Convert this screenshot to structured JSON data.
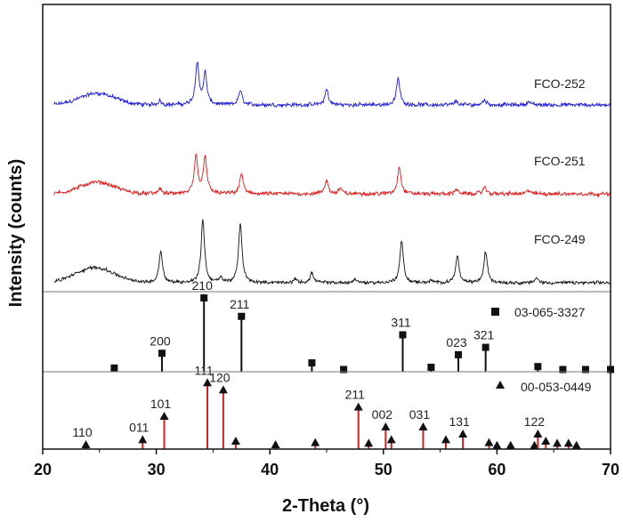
{
  "chart_data": {
    "type": "line",
    "title": "",
    "xlabel": "2-Theta (°)",
    "ylabel": "Intensity (counts)",
    "xlim": [
      20,
      70
    ],
    "xticks": [
      "20",
      "30",
      "40",
      "50",
      "60",
      "70"
    ],
    "grid": false,
    "patterns": [
      {
        "name": "FCO-252",
        "color": "#1a1adb",
        "baseline": 0.6,
        "hump": {
          "center": 24.8,
          "height": 0.26,
          "width": 2.2
        },
        "peaks": [
          {
            "x": 30.3,
            "h": 0.1
          },
          {
            "x": 33.6,
            "h": 0.95
          },
          {
            "x": 34.3,
            "h": 0.7
          },
          {
            "x": 37.4,
            "h": 0.33
          },
          {
            "x": 45.0,
            "h": 0.35
          },
          {
            "x": 51.3,
            "h": 0.6
          },
          {
            "x": 56.4,
            "h": 0.08
          },
          {
            "x": 58.9,
            "h": 0.12
          },
          {
            "x": 62.8,
            "h": 0.08
          }
        ]
      },
      {
        "name": "FCO-251",
        "color": "#e01818",
        "baseline": 0.6,
        "hump": {
          "center": 24.8,
          "height": 0.26,
          "width": 2.2
        },
        "peaks": [
          {
            "x": 30.3,
            "h": 0.12
          },
          {
            "x": 33.5,
            "h": 0.85
          },
          {
            "x": 34.3,
            "h": 0.85
          },
          {
            "x": 37.5,
            "h": 0.45
          },
          {
            "x": 45.0,
            "h": 0.3
          },
          {
            "x": 46.2,
            "h": 0.12
          },
          {
            "x": 51.4,
            "h": 0.62
          },
          {
            "x": 56.4,
            "h": 0.1
          },
          {
            "x": 58.9,
            "h": 0.15
          },
          {
            "x": 62.8,
            "h": 0.08
          }
        ]
      },
      {
        "name": "FCO-249",
        "color": "#111111",
        "baseline": 0.6,
        "hump": {
          "center": 24.6,
          "height": 0.34,
          "width": 2.4
        },
        "peaks": [
          {
            "x": 30.4,
            "h": 0.73
          },
          {
            "x": 34.1,
            "h": 1.42
          },
          {
            "x": 35.7,
            "h": 0.1
          },
          {
            "x": 37.4,
            "h": 1.35
          },
          {
            "x": 42.3,
            "h": 0.08
          },
          {
            "x": 43.7,
            "h": 0.22
          },
          {
            "x": 47.5,
            "h": 0.08
          },
          {
            "x": 51.6,
            "h": 0.95
          },
          {
            "x": 54.2,
            "h": 0.04
          },
          {
            "x": 56.5,
            "h": 0.6
          },
          {
            "x": 59.0,
            "h": 0.7
          },
          {
            "x": 63.5,
            "h": 0.1
          }
        ]
      }
    ],
    "references": [
      {
        "name": "03-065-3327",
        "marker": "square",
        "line_color": "#111111",
        "peaks": [
          {
            "x": 26.3,
            "i": 5,
            "label": ""
          },
          {
            "x": 30.5,
            "i": 25,
            "label": "200"
          },
          {
            "x": 34.2,
            "i": 100,
            "label": "210"
          },
          {
            "x": 37.5,
            "i": 75,
            "label": "211"
          },
          {
            "x": 43.7,
            "i": 12,
            "label": ""
          },
          {
            "x": 46.5,
            "i": 3,
            "label": ""
          },
          {
            "x": 51.7,
            "i": 50,
            "label": "311"
          },
          {
            "x": 54.2,
            "i": 6,
            "label": ""
          },
          {
            "x": 56.6,
            "i": 23,
            "label": "023"
          },
          {
            "x": 59.0,
            "i": 33,
            "label": "321"
          },
          {
            "x": 63.6,
            "i": 7,
            "label": ""
          },
          {
            "x": 65.8,
            "i": 3,
            "label": ""
          },
          {
            "x": 67.8,
            "i": 3,
            "label": ""
          },
          {
            "x": 70.0,
            "i": 3,
            "label": ""
          }
        ]
      },
      {
        "name": "00-053-0449",
        "marker": "triangle",
        "line_color": "#cc2222",
        "peaks": [
          {
            "x": 23.8,
            "i": 5,
            "label": "110"
          },
          {
            "x": 28.8,
            "i": 12,
            "label": "011"
          },
          {
            "x": 30.7,
            "i": 45,
            "label": "101"
          },
          {
            "x": 34.5,
            "i": 92,
            "label": "111"
          },
          {
            "x": 35.9,
            "i": 82,
            "label": "120"
          },
          {
            "x": 37.0,
            "i": 10,
            "label": ""
          },
          {
            "x": 40.5,
            "i": 5,
            "label": ""
          },
          {
            "x": 44.0,
            "i": 8,
            "label": ""
          },
          {
            "x": 47.8,
            "i": 58,
            "label": "211"
          },
          {
            "x": 48.7,
            "i": 7,
            "label": ""
          },
          {
            "x": 50.2,
            "i": 30,
            "label": "002"
          },
          {
            "x": 50.7,
            "i": 12,
            "label": ""
          },
          {
            "x": 53.5,
            "i": 30,
            "label": "031"
          },
          {
            "x": 55.5,
            "i": 12,
            "label": ""
          },
          {
            "x": 57.0,
            "i": 20,
            "label": "131"
          },
          {
            "x": 59.3,
            "i": 8,
            "label": ""
          },
          {
            "x": 60.0,
            "i": 4,
            "label": ""
          },
          {
            "x": 61.2,
            "i": 4,
            "label": ""
          },
          {
            "x": 63.3,
            "i": 4,
            "label": ""
          },
          {
            "x": 63.6,
            "i": 20,
            "label": "122"
          },
          {
            "x": 64.3,
            "i": 10,
            "label": ""
          },
          {
            "x": 65.3,
            "i": 7,
            "label": ""
          },
          {
            "x": 66.3,
            "i": 7,
            "label": ""
          },
          {
            "x": 67.0,
            "i": 4,
            "label": ""
          }
        ]
      }
    ]
  }
}
